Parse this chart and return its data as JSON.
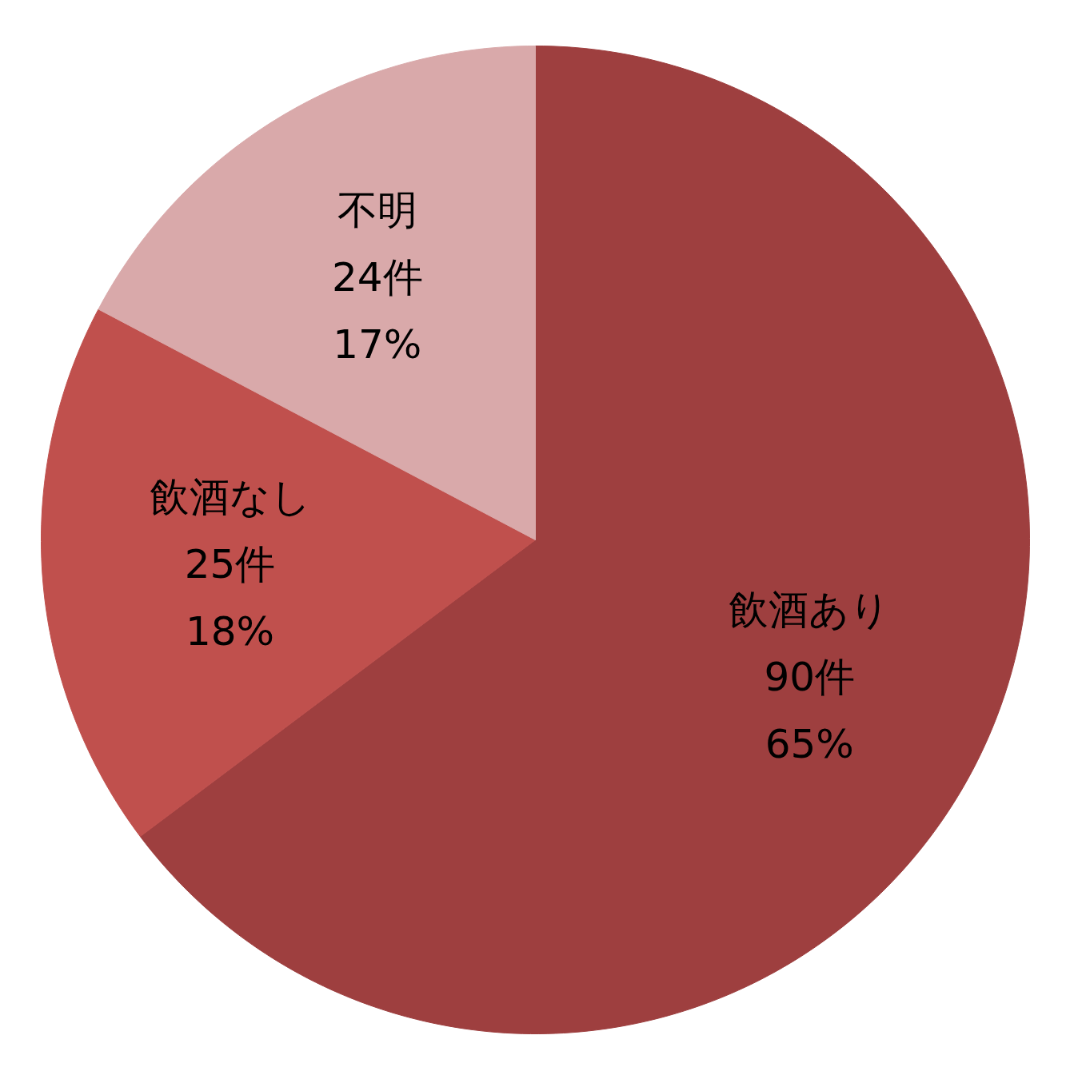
{
  "chart_data": {
    "type": "pie",
    "categories": [
      "飲酒あり",
      "飲酒なし",
      "不明"
    ],
    "values": [
      90,
      25,
      24
    ],
    "colors": [
      "#9e3f3f",
      "#c0504d",
      "#d9a9aa"
    ],
    "value_labels": [
      "90件\n65%",
      "25件\n18%",
      "24件\n17%"
    ]
  }
}
